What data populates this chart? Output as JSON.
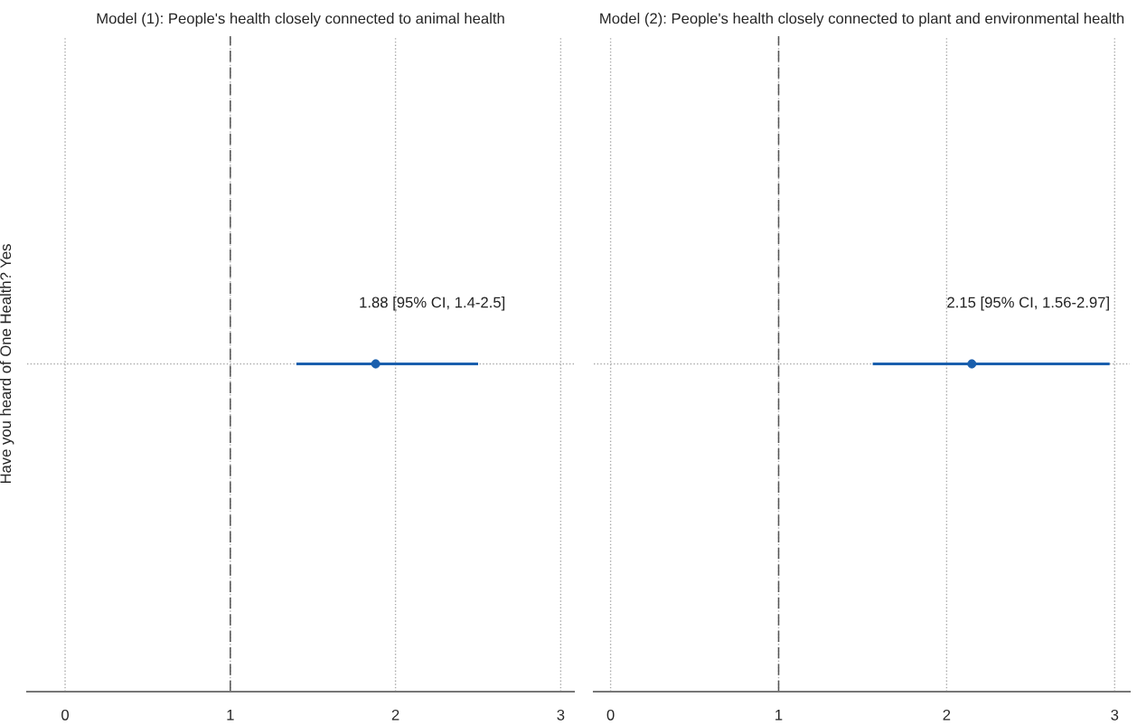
{
  "chart_data": [
    {
      "type": "scatter",
      "title": "Model (1): People's health closely connected to animal health",
      "ylabel": "Have you heard of One Health? Yes",
      "categories": [
        null
      ],
      "series": [
        {
          "color": "#1a5fad",
          "values": [
            1.88
          ],
          "errors": [
            [
              1.4,
              2.5
            ]
          ]
        }
      ],
      "orientation": "horizontal",
      "xlim": [
        -0.23,
        3.08
      ],
      "xticks": [
        0,
        1,
        2,
        3
      ],
      "grid": true,
      "marker": "circle",
      "ref_lines": [
        {
          "axis": "x",
          "value": 1,
          "color": "#555555",
          "line_style": "dashed"
        }
      ],
      "annotations": [
        "1.88 [95% CI, 1.4-2.5]"
      ]
    },
    {
      "type": "scatter",
      "title": "Model (2): People's health closely connected to plant and environmental health",
      "categories": [
        null
      ],
      "series": [
        {
          "color": "#1a5fad",
          "values": [
            2.15
          ],
          "errors": [
            [
              1.56,
              2.97
            ]
          ]
        }
      ],
      "orientation": "horizontal",
      "xlim": [
        -0.1,
        3.09
      ],
      "xticks": [
        0,
        1,
        2,
        3
      ],
      "grid": true,
      "marker": "circle",
      "tick_labels": "x",
      "ref_lines": [
        {
          "axis": "x",
          "value": 1,
          "color": "#555555",
          "line_style": "dashed"
        }
      ],
      "annotations": [
        "2.15 [95% CI, 1.56-2.97]"
      ]
    }
  ]
}
